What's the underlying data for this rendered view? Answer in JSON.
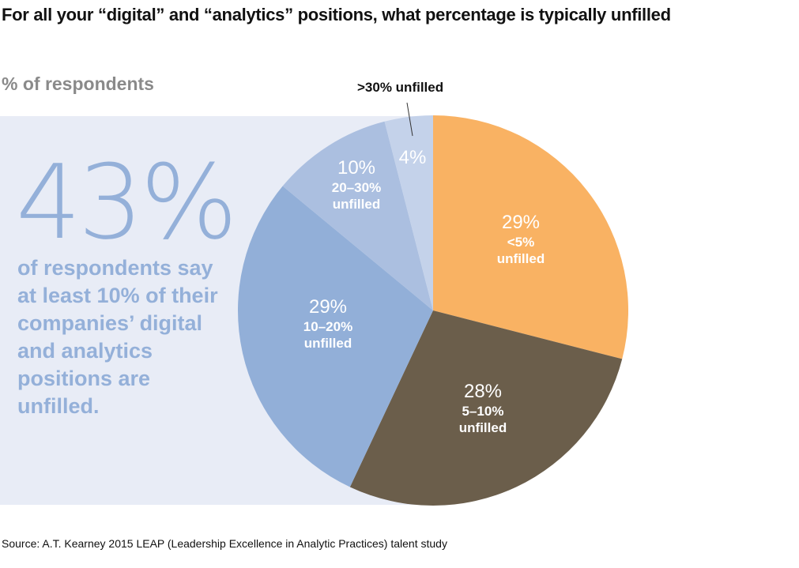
{
  "chart_data": {
    "type": "pie",
    "title": "For all your “digital” and “analytics” positions, what percentage is typically unfilled",
    "subtitle": "% of respondents",
    "slices": [
      {
        "label": "<5% unfilled",
        "cat_line1": "<5%",
        "cat_line2": "unfilled",
        "value": 29,
        "pct_label": "29%",
        "color": "#f9b263"
      },
      {
        "label": "5–10% unfilled",
        "cat_line1": "5–10%",
        "cat_line2": "unfilled",
        "value": 28,
        "pct_label": "28%",
        "color": "#6b5e4b"
      },
      {
        "label": "10–20% unfilled",
        "cat_line1": "10–20%",
        "cat_line2": "unfilled",
        "value": 29,
        "pct_label": "29%",
        "color": "#92afd8"
      },
      {
        "label": "20–30% unfilled",
        "cat_line1": "20–30%",
        "cat_line2": "unfilled",
        "value": 10,
        "pct_label": "10%",
        "color": "#abbfe0"
      },
      {
        "label": ">30% unfilled",
        "value": 4,
        "pct_label": "4%",
        "color": "#c4d2ea"
      }
    ],
    "callout": ">30% unfilled",
    "start": "top",
    "direction": "clockwise"
  },
  "highlight": {
    "big_number": "43%",
    "text": "of respondents say at least 10% of their companies’ digital and analytics positions are unfilled."
  },
  "source": "Source: A.T. Kearney 2015 LEAP (Leadership Excellence in Analytic Practices) talent study"
}
